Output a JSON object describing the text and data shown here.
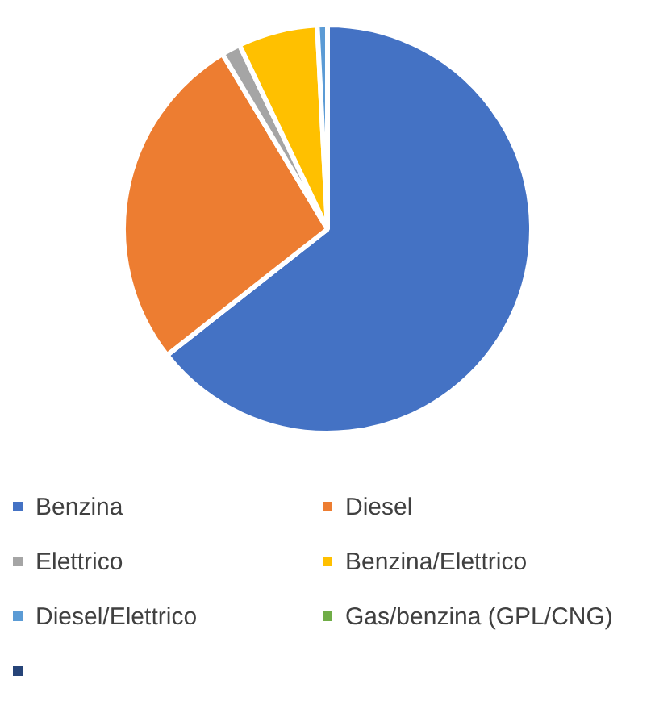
{
  "chart_data": {
    "type": "pie",
    "categories": [
      "Benzina",
      "Diesel",
      "Elettrico",
      "Benzina/Elettrico",
      "Diesel/Elettrico",
      "Gas/benzina (GPL/CNG)",
      null
    ],
    "values": [
      64.4,
      27,
      1.5,
      6.3,
      0.8,
      0,
      0
    ],
    "colors": [
      "#4472c4",
      "#ed7d31",
      "#a5a5a5",
      "#ffc000",
      "#5b9bd5",
      "#70ad47",
      "#264478"
    ],
    "legend": "bottom"
  }
}
